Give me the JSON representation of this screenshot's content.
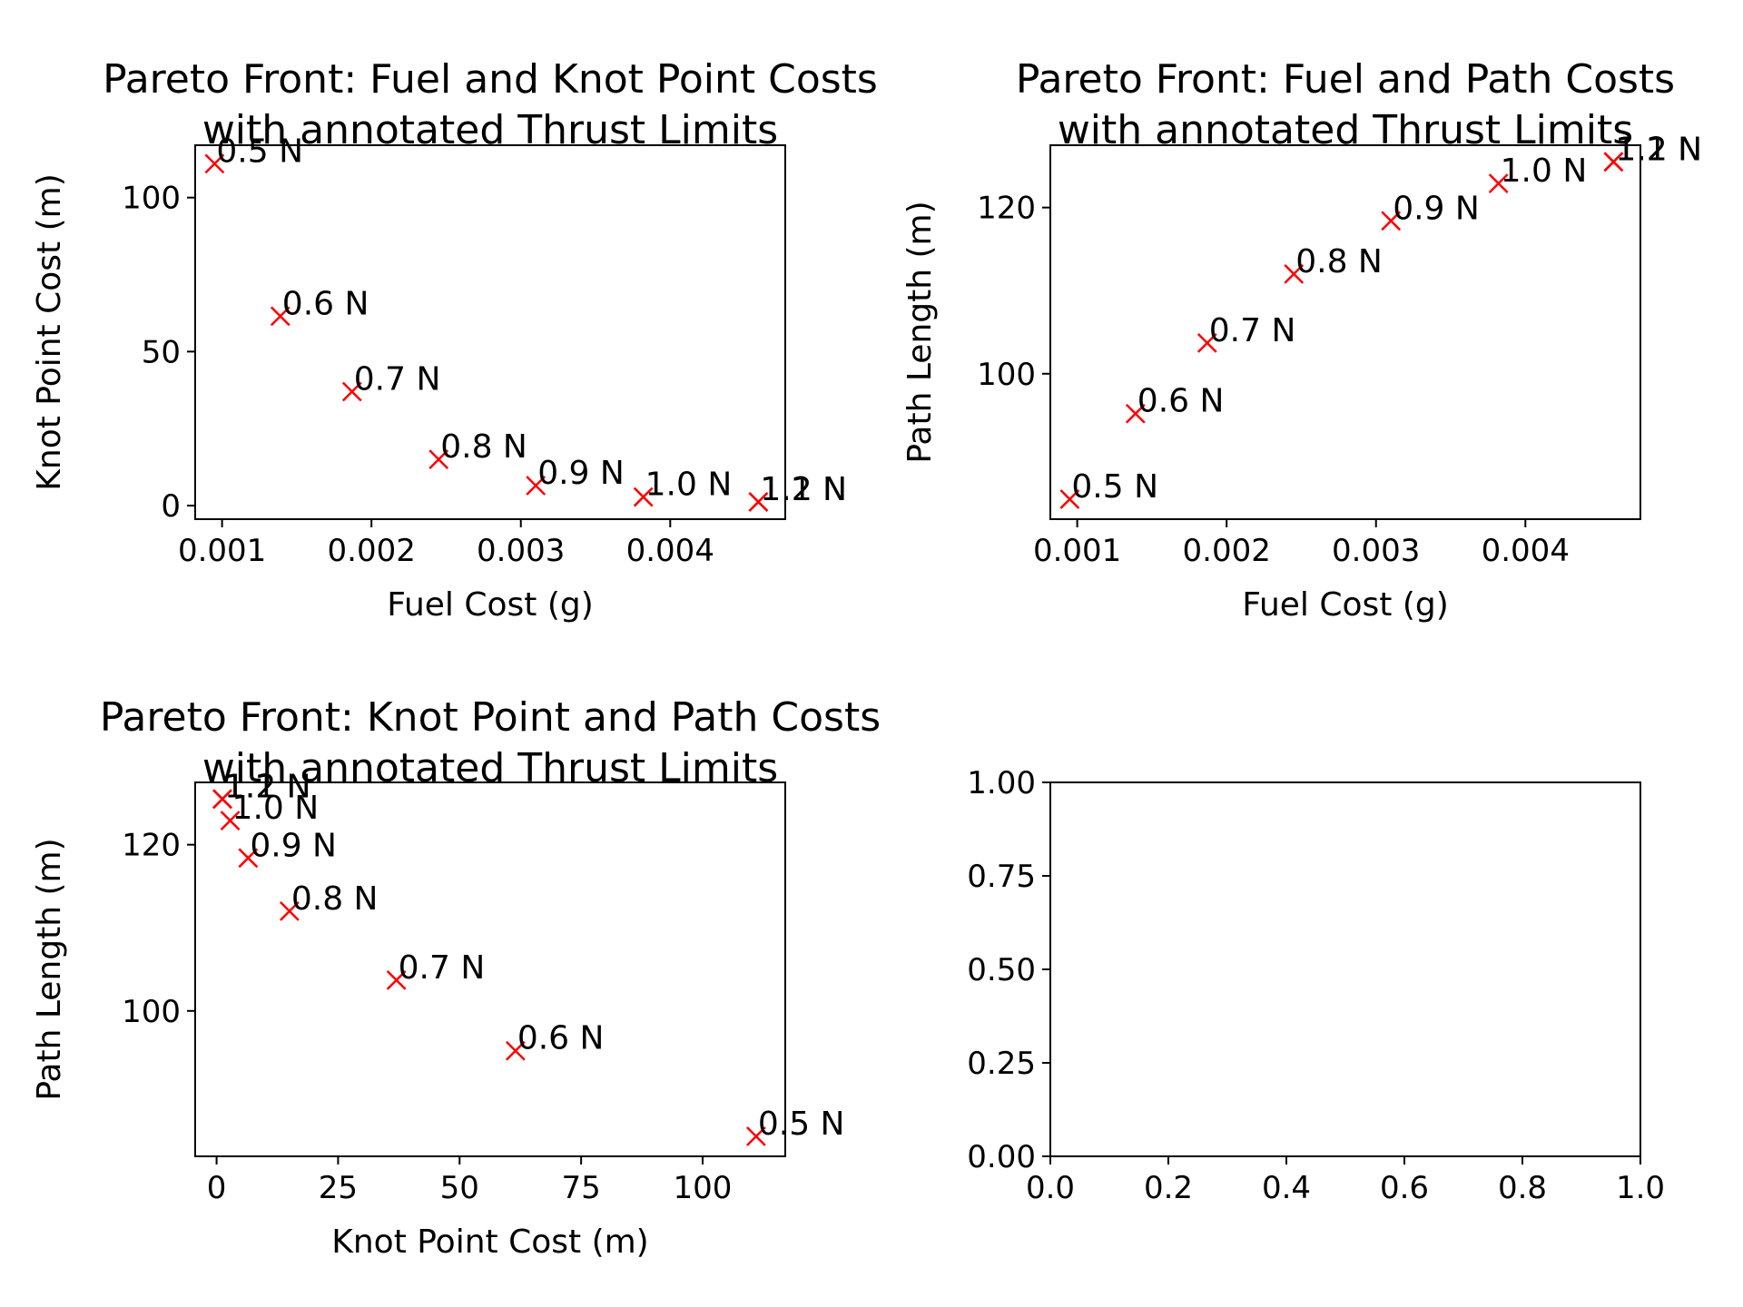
{
  "chart_data": [
    {
      "type": "scatter",
      "title": "Pareto Front: Fuel and Knot Point Costs\nwith annotated Thrust Limits",
      "xlabel": "Fuel Cost (g)",
      "ylabel": "Knot Point Cost (m)",
      "xlim": [
        0.00082,
        0.00477
      ],
      "ylim": [
        -4.4,
        117
      ],
      "xticks": [
        0.001,
        0.002,
        0.003,
        0.004
      ],
      "xtick_labels": [
        "0.001",
        "0.002",
        "0.003",
        "0.004"
      ],
      "yticks": [
        0,
        50,
        100
      ],
      "ytick_labels": [
        "0",
        "50",
        "100"
      ],
      "marker": "x",
      "color": "#ff0000",
      "points": [
        {
          "x": 0.00095,
          "y": 111.0,
          "label": "0.5 N"
        },
        {
          "x": 0.00139,
          "y": 61.5,
          "label": "0.6 N"
        },
        {
          "x": 0.00187,
          "y": 37.0,
          "label": "0.7 N"
        },
        {
          "x": 0.00245,
          "y": 15.0,
          "label": "0.8 N"
        },
        {
          "x": 0.0031,
          "y": 6.5,
          "label": "0.9 N"
        },
        {
          "x": 0.00382,
          "y": 2.8,
          "label": "1.0 N"
        },
        {
          "x": 0.00459,
          "y": 1.2,
          "label": "1.1 N"
        },
        {
          "x": 0.00459,
          "y": 1.2,
          "label": "1.2 N"
        }
      ]
    },
    {
      "type": "scatter",
      "title": "Pareto Front: Fuel and Path Costs\nwith annotated Thrust Limits",
      "xlabel": "Fuel Cost (g)",
      "ylabel": "Path Length (m)",
      "xlim": [
        0.00082,
        0.00477
      ],
      "ylim": [
        82.5,
        127.5
      ],
      "xticks": [
        0.001,
        0.002,
        0.003,
        0.004
      ],
      "xtick_labels": [
        "0.001",
        "0.002",
        "0.003",
        "0.004"
      ],
      "yticks": [
        100,
        120
      ],
      "ytick_labels": [
        "100",
        "120"
      ],
      "marker": "x",
      "color": "#ff0000",
      "points": [
        {
          "x": 0.00095,
          "y": 84.9,
          "label": "0.5 N"
        },
        {
          "x": 0.00139,
          "y": 95.2,
          "label": "0.6 N"
        },
        {
          "x": 0.00187,
          "y": 103.7,
          "label": "0.7 N"
        },
        {
          "x": 0.00245,
          "y": 112.0,
          "label": "0.8 N"
        },
        {
          "x": 0.0031,
          "y": 118.4,
          "label": "0.9 N"
        },
        {
          "x": 0.00382,
          "y": 122.9,
          "label": "1.0 N"
        },
        {
          "x": 0.00459,
          "y": 125.5,
          "label": "1.1 N"
        },
        {
          "x": 0.00459,
          "y": 125.5,
          "label": "1.2 N"
        }
      ]
    },
    {
      "type": "scatter",
      "title": "Pareto Front: Knot Point and Path Costs\nwith annotated Thrust Limits",
      "xlabel": "Knot Point Cost (m)",
      "ylabel": "Path Length (m)",
      "xlim": [
        -4.4,
        117
      ],
      "ylim": [
        82.5,
        127.5
      ],
      "xticks": [
        0,
        25,
        50,
        75,
        100
      ],
      "xtick_labels": [
        "0",
        "25",
        "50",
        "75",
        "100"
      ],
      "yticks": [
        100,
        120
      ],
      "ytick_labels": [
        "100",
        "120"
      ],
      "marker": "x",
      "color": "#ff0000",
      "points": [
        {
          "x": 111.0,
          "y": 84.9,
          "label": "0.5 N"
        },
        {
          "x": 61.5,
          "y": 95.2,
          "label": "0.6 N"
        },
        {
          "x": 37.0,
          "y": 103.7,
          "label": "0.7 N"
        },
        {
          "x": 15.0,
          "y": 112.0,
          "label": "0.8 N"
        },
        {
          "x": 6.5,
          "y": 118.4,
          "label": "0.9 N"
        },
        {
          "x": 2.8,
          "y": 122.9,
          "label": "1.0 N"
        },
        {
          "x": 1.2,
          "y": 125.5,
          "label": "1.1 N"
        },
        {
          "x": 1.2,
          "y": 125.5,
          "label": "1.2 N"
        }
      ]
    },
    {
      "type": "scatter",
      "title": "",
      "xlabel": "",
      "ylabel": "",
      "xlim": [
        0,
        1
      ],
      "ylim": [
        0,
        1
      ],
      "xticks": [
        0,
        0.2,
        0.4,
        0.6,
        0.8,
        1.0
      ],
      "xtick_labels": [
        "0.0",
        "0.2",
        "0.4",
        "0.6",
        "0.8",
        "1.0"
      ],
      "yticks": [
        0,
        0.25,
        0.5,
        0.75,
        1.0
      ],
      "ytick_labels": [
        "0.00",
        "0.25",
        "0.50",
        "0.75",
        "1.00"
      ],
      "marker": "x",
      "color": "#ff0000",
      "points": []
    }
  ]
}
